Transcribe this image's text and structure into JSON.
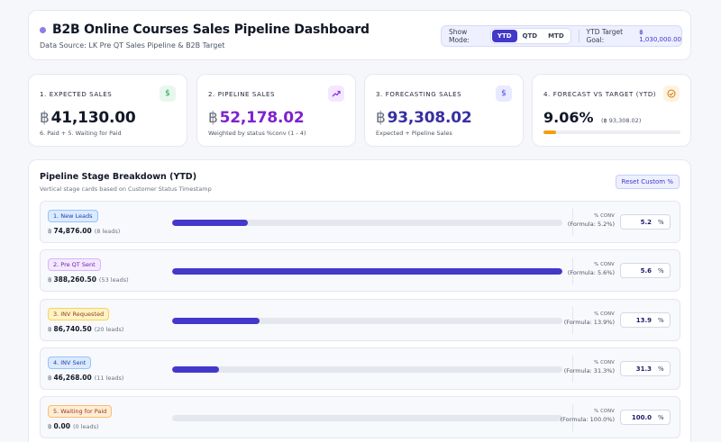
{
  "header": {
    "title": "B2B Online Courses Sales Pipeline Dashboard",
    "subtitle": "Data Source: LK Pre QT Sales Pipeline & B2B Target",
    "show_mode_label": "Show Mode:",
    "modes": [
      "YTD",
      "QTD",
      "MTD"
    ],
    "active_mode": "YTD",
    "target_label": "YTD Target Goal:",
    "target_value": "฿ 1,030,000.00"
  },
  "currency_symbol": "฿",
  "kpis": [
    {
      "label": "1. EXPECTED SALES",
      "value": "41,130.00",
      "note": "6. Paid + 5. Waiting for Paid",
      "icon": "dollar-icon",
      "value_color": "#111827",
      "icon_color": "#16a34a",
      "icon_bg": "#e8f7ee"
    },
    {
      "label": "2. PIPELINE SALES",
      "value": "52,178.02",
      "note": "Weighted by status %conv (1 - 4)",
      "icon": "trend-up-icon",
      "value_color": "#7e22ce",
      "icon_color": "#9333ea",
      "icon_bg": "#f3e8ff"
    },
    {
      "label": "3. FORECASTING SALES",
      "value": "93,308.02",
      "note": "Expected + Pipeline Sales",
      "icon": "dollar-icon",
      "value_color": "#3730a3",
      "icon_color": "#4f46e5",
      "icon_bg": "#e8eaff"
    },
    {
      "label": "4. FORECAST VS TARGET (YTD)",
      "value": "9.06%",
      "sub": "(฿ 93,308.02)",
      "progress": 9.06,
      "icon": "check-circle-icon",
      "icon_color": "#d97706",
      "icon_bg": "#fdf3e1"
    }
  ],
  "pipeline": {
    "title": "Pipeline Stage Breakdown (YTD)",
    "subtitle": "Vertical stage cards based on Customer Status Timestamp",
    "reset_label": "Reset Custom %",
    "conv_label": "% CONV",
    "unit": "%",
    "stages": [
      {
        "label": "1. New Leads",
        "amount": "74,876.00",
        "leads": "(8 leads)",
        "fill": 19.3,
        "formula": "(Formula: 5.2%)",
        "conv": "5.2",
        "badge_bg": "#dbeafe",
        "badge_border": "#93c5fd",
        "badge_color": "#1e40af"
      },
      {
        "label": "2. Pre QT Sent",
        "amount": "388,260.50",
        "leads": "(53 leads)",
        "fill": 100,
        "formula": "(Formula: 5.6%)",
        "conv": "5.6",
        "badge_bg": "#f3e8ff",
        "badge_border": "#d8b4fe",
        "badge_color": "#6b21a8"
      },
      {
        "label": "3. INV Requested",
        "amount": "86,740.50",
        "leads": "(20 leads)",
        "fill": 22.3,
        "formula": "(Formula: 13.9%)",
        "conv": "13.9",
        "badge_bg": "#fef3c7",
        "badge_border": "#fcd34d",
        "badge_color": "#92400e"
      },
      {
        "label": "4. INV Sent",
        "amount": "46,268.00",
        "leads": "(11 leads)",
        "fill": 11.9,
        "formula": "(Formula: 31.3%)",
        "conv": "31.3",
        "badge_bg": "#dbeafe",
        "badge_border": "#93c5fd",
        "badge_color": "#1e40af"
      },
      {
        "label": "5. Waiting for Paid",
        "amount": "0.00",
        "leads": "(0 leads)",
        "fill": 0,
        "formula": "(Formula: 100.0%)",
        "conv": "100.0",
        "badge_bg": "#ffedd5",
        "badge_border": "#fdba74",
        "badge_color": "#9a3412"
      }
    ]
  }
}
